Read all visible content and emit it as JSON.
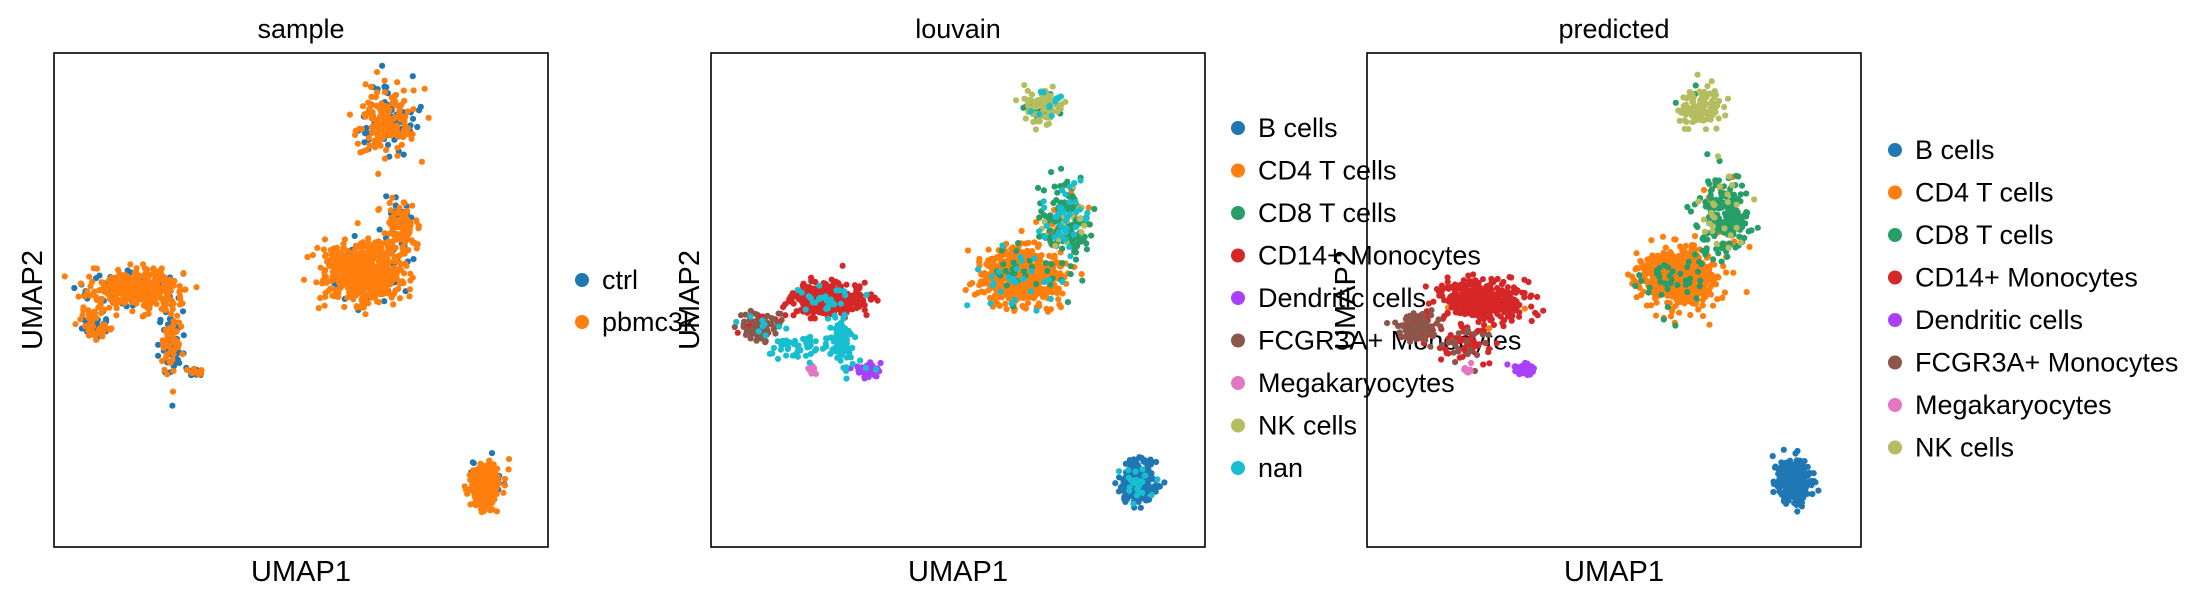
{
  "chart_data": [
    {
      "type": "scatter",
      "title": "sample",
      "xlabel": "UMAP1",
      "ylabel": "UMAP2",
      "grid": false,
      "legend": "right",
      "xlim": [
        -8,
        14
      ],
      "ylim": [
        -11,
        11
      ],
      "series": [
        {
          "name": "ctrl",
          "color": "#1f77b4"
        },
        {
          "name": "pbmc3k",
          "color": "#ff7f0e"
        }
      ],
      "clusters": [
        {
          "center": [
            -6.2,
            -1.1
          ],
          "spread": [
            0.6,
            0.5
          ],
          "count": 80,
          "mix": [
            0.55,
            0.45
          ]
        },
        {
          "center": [
            -4.4,
            0.4
          ],
          "spread": [
            1.6,
            0.75
          ],
          "count": 400,
          "mix": [
            0.2,
            0.8
          ]
        },
        {
          "center": [
            -2.8,
            -2.0
          ],
          "spread": [
            0.45,
            1.3
          ],
          "count": 90,
          "mix": [
            0.45,
            0.55
          ]
        },
        {
          "center": [
            -1.7,
            -3.2
          ],
          "spread": [
            0.45,
            0.15
          ],
          "count": 24,
          "mix": [
            0.5,
            0.5
          ]
        },
        {
          "center": [
            5.8,
            1.2
          ],
          "spread": [
            1.35,
            1.1
          ],
          "count": 650,
          "mix": [
            0.12,
            0.88
          ]
        },
        {
          "center": [
            7.4,
            3.3
          ],
          "spread": [
            0.55,
            0.9
          ],
          "count": 130,
          "mix": [
            0.25,
            0.75
          ]
        },
        {
          "center": [
            6.8,
            8.0
          ],
          "spread": [
            1.0,
            1.2
          ],
          "count": 220,
          "mix": [
            0.3,
            0.7
          ]
        },
        {
          "center": [
            11.2,
            -8.2
          ],
          "spread": [
            0.55,
            0.75
          ],
          "count": 300,
          "mix": [
            0.15,
            0.85
          ]
        }
      ]
    },
    {
      "type": "scatter",
      "title": "louvain",
      "xlabel": "UMAP1",
      "ylabel": "UMAP2",
      "grid": false,
      "legend": "right",
      "xlim": [
        -8,
        14
      ],
      "ylim": [
        -11,
        11
      ],
      "series": [
        {
          "name": "B cells",
          "color": "#1f77b4"
        },
        {
          "name": "CD4 T cells",
          "color": "#ff7f0e"
        },
        {
          "name": "CD8 T cells",
          "color": "#279e68"
        },
        {
          "name": "CD14+ Monocytes",
          "color": "#d62728"
        },
        {
          "name": "Dendritic cells",
          "color": "#aa40fc"
        },
        {
          "name": "FCGR3A+ Monocytes",
          "color": "#8c564b"
        },
        {
          "name": "Megakaryocytes",
          "color": "#e377c2"
        },
        {
          "name": "NK cells",
          "color": "#b5bd61"
        },
        {
          "name": "nan",
          "color": "#17becf"
        }
      ],
      "clusters": [
        {
          "center": [
            11.0,
            -8.1
          ],
          "spread": [
            0.6,
            0.75
          ],
          "count": 300,
          "mix": [
            0.93,
            0,
            0,
            0,
            0,
            0,
            0,
            0,
            0.07
          ]
        },
        {
          "center": [
            5.8,
            1.0
          ],
          "spread": [
            1.35,
            1.0
          ],
          "count": 620,
          "mix": [
            0,
            0.9,
            0.06,
            0,
            0,
            0,
            0,
            0,
            0.04
          ]
        },
        {
          "center": [
            7.8,
            3.5
          ],
          "spread": [
            0.9,
            1.4
          ],
          "count": 240,
          "mix": [
            0,
            0.1,
            0.62,
            0,
            0,
            0,
            0,
            0.08,
            0.2
          ]
        },
        {
          "center": [
            6.8,
            8.6
          ],
          "spread": [
            0.7,
            0.65
          ],
          "count": 110,
          "mix": [
            0,
            0,
            0.15,
            0,
            0,
            0,
            0,
            0.75,
            0.1
          ]
        },
        {
          "center": [
            -2.8,
            0.0
          ],
          "spread": [
            1.3,
            0.65
          ],
          "count": 380,
          "mix": [
            0,
            0.02,
            0,
            0.9,
            0,
            0,
            0,
            0,
            0.08
          ]
        },
        {
          "center": [
            -5.8,
            -1.2
          ],
          "spread": [
            0.7,
            0.55
          ],
          "count": 110,
          "mix": [
            0,
            0,
            0,
            0.15,
            0,
            0.75,
            0,
            0,
            0.1
          ]
        },
        {
          "center": [
            -2.2,
            -1.8
          ],
          "spread": [
            0.5,
            0.9
          ],
          "count": 80,
          "mix": [
            0,
            0,
            0,
            0,
            0,
            0,
            0,
            0,
            1
          ]
        },
        {
          "center": [
            -4.2,
            -2.0
          ],
          "spread": [
            1.0,
            0.5
          ],
          "count": 50,
          "mix": [
            0,
            0,
            0,
            0,
            0,
            0,
            0,
            0,
            1
          ]
        },
        {
          "center": [
            -1.0,
            -3.1
          ],
          "spread": [
            0.5,
            0.25
          ],
          "count": 40,
          "mix": [
            0,
            0,
            0,
            0,
            0.85,
            0,
            0,
            0,
            0.15
          ]
        },
        {
          "center": [
            -3.5,
            -3.1
          ],
          "spread": [
            0.15,
            0.25
          ],
          "count": 10,
          "mix": [
            0,
            0,
            0,
            0,
            0,
            0,
            1,
            0,
            0
          ]
        }
      ]
    },
    {
      "type": "scatter",
      "title": "predicted",
      "xlabel": "UMAP1",
      "ylabel": "UMAP2",
      "grid": false,
      "legend": "right",
      "xlim": [
        -8,
        14
      ],
      "ylim": [
        -11,
        11
      ],
      "series": [
        {
          "name": "B cells",
          "color": "#1f77b4"
        },
        {
          "name": "CD4 T cells",
          "color": "#ff7f0e"
        },
        {
          "name": "CD8 T cells",
          "color": "#279e68"
        },
        {
          "name": "CD14+ Monocytes",
          "color": "#d62728"
        },
        {
          "name": "Dendritic cells",
          "color": "#aa40fc"
        },
        {
          "name": "FCGR3A+ Monocytes",
          "color": "#8c564b"
        },
        {
          "name": "Megakaryocytes",
          "color": "#e377c2"
        },
        {
          "name": "NK cells",
          "color": "#b5bd61"
        }
      ],
      "clusters": [
        {
          "center": [
            11.0,
            -8.1
          ],
          "spread": [
            0.6,
            0.75
          ],
          "count": 300,
          "mix": [
            1,
            0,
            0,
            0,
            0,
            0,
            0,
            0
          ]
        },
        {
          "center": [
            5.8,
            1.0
          ],
          "spread": [
            1.35,
            1.0
          ],
          "count": 620,
          "mix": [
            0,
            0.92,
            0.08,
            0,
            0,
            0,
            0,
            0
          ]
        },
        {
          "center": [
            7.8,
            3.7
          ],
          "spread": [
            0.9,
            1.4
          ],
          "count": 240,
          "mix": [
            0,
            0.1,
            0.82,
            0,
            0,
            0,
            0,
            0.08
          ]
        },
        {
          "center": [
            6.8,
            8.6
          ],
          "spread": [
            0.75,
            0.7
          ],
          "count": 120,
          "mix": [
            0,
            0,
            0.1,
            0,
            0,
            0,
            0,
            0.9
          ]
        },
        {
          "center": [
            -2.8,
            0.0
          ],
          "spread": [
            1.5,
            0.7
          ],
          "count": 420,
          "mix": [
            0,
            0.02,
            0,
            0.98,
            0,
            0,
            0,
            0
          ]
        },
        {
          "center": [
            -5.8,
            -1.2
          ],
          "spread": [
            0.7,
            0.55
          ],
          "count": 110,
          "mix": [
            0,
            0,
            0,
            0.2,
            0,
            0.8,
            0,
            0
          ]
        },
        {
          "center": [
            -3.6,
            -2.0
          ],
          "spread": [
            0.9,
            0.7
          ],
          "count": 70,
          "mix": [
            0,
            0,
            0,
            0.7,
            0,
            0.3,
            0,
            0
          ]
        },
        {
          "center": [
            -1.0,
            -3.1
          ],
          "spread": [
            0.5,
            0.25
          ],
          "count": 40,
          "mix": [
            0,
            0,
            0,
            0,
            1,
            0,
            0,
            0
          ]
        },
        {
          "center": [
            -3.5,
            -3.1
          ],
          "spread": [
            0.15,
            0.25
          ],
          "count": 10,
          "mix": [
            0,
            0,
            0,
            0,
            0,
            0,
            1,
            0
          ]
        }
      ]
    }
  ]
}
